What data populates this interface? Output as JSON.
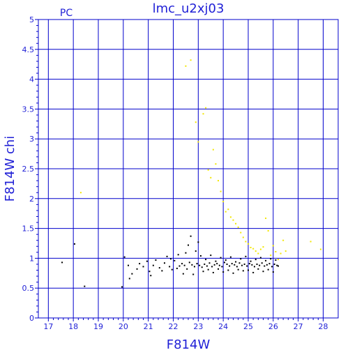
{
  "chart_data": {
    "type": "scatter",
    "title": "lmc_u2xj03",
    "corner_label": "PC",
    "xlabel": "F814W",
    "ylabel": "F814W chi",
    "xlim": [
      16.6,
      28.6
    ],
    "ylim": [
      0,
      5
    ],
    "xticks": [
      17,
      18,
      19,
      20,
      21,
      22,
      23,
      24,
      25,
      26,
      27,
      28
    ],
    "yticks": [
      0,
      0.5,
      1,
      1.5,
      2,
      2.5,
      3,
      3.5,
      4,
      4.5,
      5
    ],
    "grid": true,
    "legend": "none",
    "colors": {
      "axis": "#0000cc",
      "text": "#1f1fd6",
      "series_black": "#000000",
      "series_yellow": "#f2e600"
    },
    "series": [
      {
        "color": "#000000",
        "x": [
          17.55,
          18.05,
          18.45,
          19.95,
          20.05,
          20.2,
          20.25,
          20.35,
          20.55,
          20.65,
          20.8,
          20.95,
          21.05,
          21.1,
          21.2,
          21.3,
          21.45,
          21.55,
          21.65,
          21.75,
          21.85,
          21.95,
          22.05,
          22.15,
          22.25,
          22.35,
          22.45,
          22.55,
          22.65,
          22.75,
          22.85,
          22.95,
          23.05,
          23.15,
          23.25,
          23.35,
          23.45,
          23.55,
          23.65,
          23.75,
          23.85,
          23.95,
          24.05,
          24.15,
          24.25,
          24.35,
          24.45,
          24.55,
          24.65,
          24.75,
          24.85,
          24.95,
          25.05,
          25.15,
          25.25,
          25.35,
          25.45,
          25.55,
          25.65,
          25.75,
          25.85,
          25.95,
          26.05,
          26.15,
          26.2,
          22.6,
          22.7,
          22.9,
          23.1,
          23.3,
          23.5,
          23.7,
          23.9,
          24.1,
          24.3,
          24.5,
          24.7,
          24.9,
          25.1,
          25.3,
          25.5,
          25.7,
          25.9,
          26.1,
          22.4,
          22.8,
          23.2,
          23.6,
          24.0,
          24.4,
          24.8,
          25.2,
          25.6,
          26.0,
          21.9,
          22.2,
          22.5,
          23.0,
          23.4,
          23.8,
          24.2,
          24.6,
          25.0,
          25.4,
          25.8
        ],
        "y": [
          0.93,
          1.24,
          0.53,
          0.52,
          1.02,
          0.88,
          0.66,
          0.74,
          0.82,
          0.91,
          0.86,
          0.95,
          0.78,
          0.71,
          0.88,
          0.97,
          0.84,
          0.79,
          0.92,
          1.03,
          0.86,
          0.81,
          0.96,
          0.83,
          0.87,
          0.91,
          0.88,
          0.82,
          0.93,
          0.89,
          0.86,
          0.91,
          0.88,
          0.85,
          0.9,
          0.87,
          0.92,
          0.86,
          0.89,
          0.91,
          0.88,
          0.86,
          0.93,
          0.9,
          0.87,
          0.91,
          0.89,
          0.86,
          0.92,
          0.88,
          0.9,
          0.87,
          0.91,
          0.89,
          0.86,
          0.9,
          0.88,
          0.92,
          0.87,
          0.89,
          0.91,
          0.86,
          0.9,
          0.88,
          0.87,
          1.22,
          1.37,
          1.12,
          1.04,
          0.98,
          1.05,
          0.95,
          1.01,
          0.97,
          1.02,
          0.94,
          0.99,
          1.03,
          0.95,
          0.98,
          1.01,
          0.96,
          0.99,
          0.97,
          0.74,
          0.73,
          0.78,
          0.76,
          0.77,
          0.75,
          0.79,
          0.76,
          0.78,
          0.77,
          0.99,
          1.06,
          1.09,
          1.27,
          0.81,
          0.82,
          0.8,
          0.81,
          0.8,
          0.82,
          0.81
        ]
      },
      {
        "color": "#f2e600",
        "x": [
          18.3,
          22.5,
          22.7,
          22.9,
          23.0,
          23.2,
          23.3,
          23.4,
          23.5,
          23.6,
          23.7,
          23.8,
          23.9,
          24.0,
          24.1,
          24.2,
          24.3,
          24.4,
          24.5,
          24.6,
          24.7,
          24.8,
          24.9,
          25.0,
          25.1,
          25.2,
          25.3,
          25.4,
          25.5,
          25.6,
          25.7,
          25.8,
          25.9,
          26.0,
          26.1,
          26.2,
          26.3,
          26.4,
          26.5,
          27.5,
          27.9
        ],
        "y": [
          2.1,
          4.22,
          4.32,
          3.28,
          2.95,
          3.42,
          3.52,
          2.48,
          2.35,
          2.82,
          2.58,
          2.3,
          2.12,
          1.95,
          1.78,
          1.82,
          1.69,
          1.64,
          1.58,
          1.52,
          1.43,
          1.35,
          1.28,
          1.24,
          1.18,
          1.16,
          1.12,
          1.08,
          1.15,
          1.19,
          1.67,
          1.46,
          1.05,
          1.21,
          1.11,
          0.98,
          1.08,
          1.3,
          1.12,
          1.28,
          1.15
        ]
      }
    ]
  }
}
